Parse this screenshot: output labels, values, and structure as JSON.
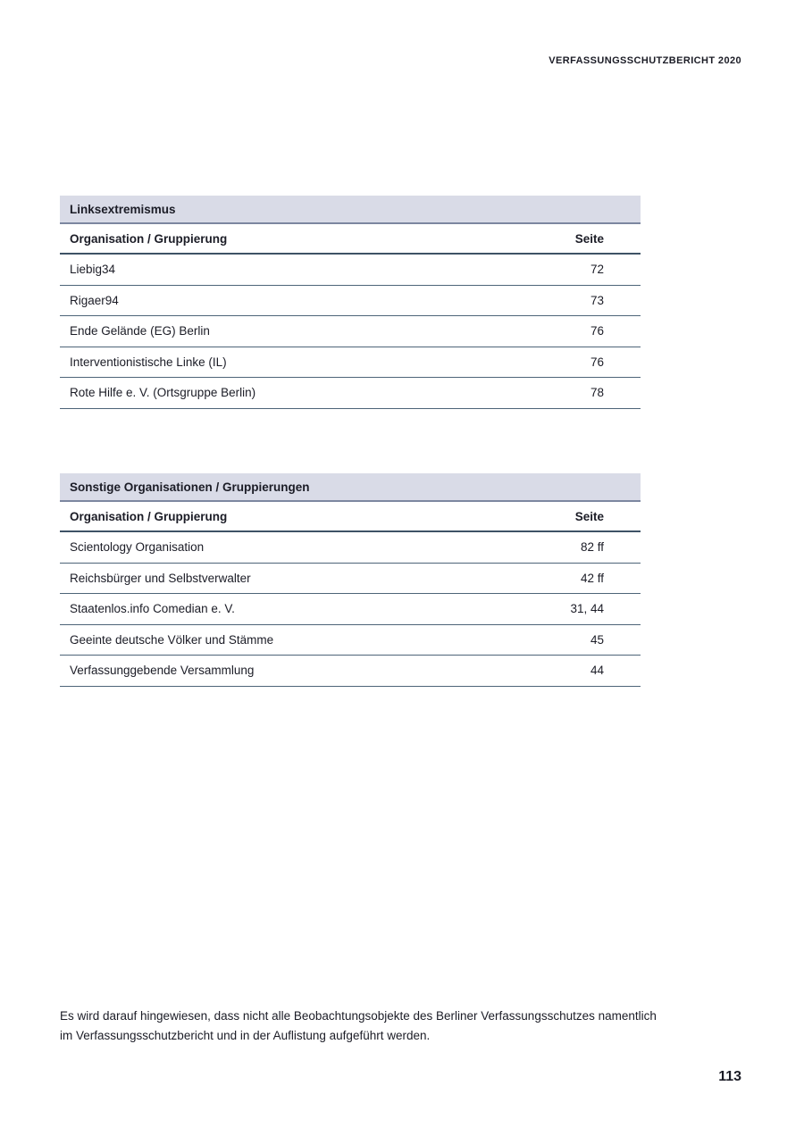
{
  "running_header": "VERFASSUNGSSCHUTZBERICHT 2020",
  "tables": [
    {
      "title": "Linksextremismus",
      "columns": {
        "organisation": "Organisation / Gruppierung",
        "page": "Seite"
      },
      "rows": [
        {
          "org": "Liebig34",
          "page": "72"
        },
        {
          "org": "Rigaer94",
          "page": "73"
        },
        {
          "org": "Ende Gelände (EG) Berlin",
          "page": "76"
        },
        {
          "org": "Interventionistische Linke (IL)",
          "page": "76"
        },
        {
          "org": "Rote Hilfe e. V. (Ortsgruppe Berlin)",
          "page": "78"
        }
      ]
    },
    {
      "title": "Sonstige Organisationen / Gruppierungen",
      "columns": {
        "organisation": "Organisation / Gruppierung",
        "page": "Seite"
      },
      "rows": [
        {
          "org": "Scientology Organisation",
          "page": "82 ff"
        },
        {
          "org": "Reichsbürger und Selbstverwalter",
          "page": "42 ff"
        },
        {
          "org": "Staatenlos.info Comedian e. V.",
          "page": "31, 44"
        },
        {
          "org": "Geeinte deutsche Völker und Stämme",
          "page": "45"
        },
        {
          "org": "Verfassunggebende Versammlung",
          "page": "44"
        }
      ]
    }
  ],
  "footnote": {
    "line1": "Es wird darauf hingewiesen, dass nicht alle Beobachtungsobjekte des Berliner Verfassungsschutzes namentlich",
    "line2": "im Verfassungsschutzbericht und in der Auflistung aufgeführt werden."
  },
  "page_number": "113",
  "colors": {
    "band_bg": "#d9dbe7",
    "band_edge": "#7c87a0",
    "header_rule": "#3e5266",
    "row_rule": "#4d6478",
    "text": "#1b1c26"
  }
}
